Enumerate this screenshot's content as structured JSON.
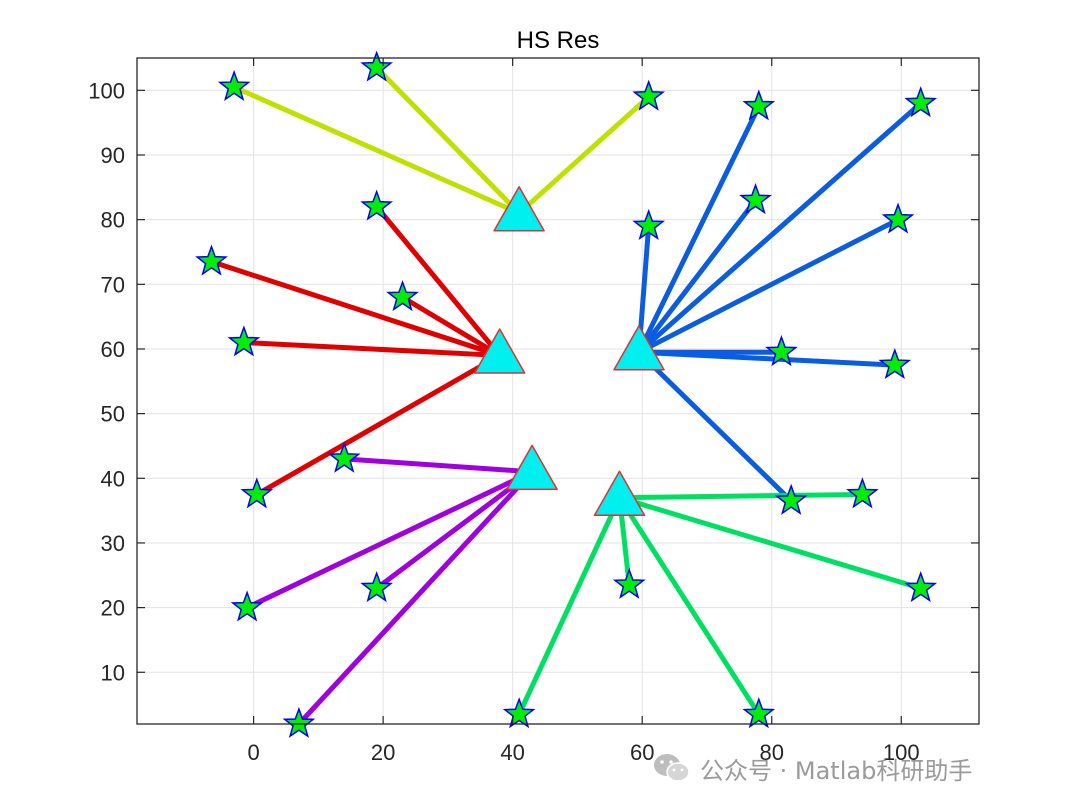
{
  "chart_data": {
    "type": "scatter",
    "title": "HS Res",
    "xlabel": "",
    "ylabel": "",
    "xlim": [
      -18,
      112
    ],
    "ylim": [
      2,
      105
    ],
    "xticks": [
      0,
      20,
      40,
      60,
      80,
      100
    ],
    "yticks": [
      10,
      20,
      30,
      40,
      50,
      60,
      70,
      80,
      90,
      100
    ],
    "xtick_labels": [
      "0",
      "20",
      "40",
      "60",
      "80",
      "100"
    ],
    "ytick_labels": [
      "10",
      "20",
      "30",
      "40",
      "50",
      "60",
      "70",
      "80",
      "90",
      "100"
    ],
    "grid": true,
    "centers_marker": "triangle",
    "centers_color": "#00f0f0",
    "centers_edge_color": "#e03030",
    "points_marker": "star",
    "points_color": "#00ee00",
    "points_edge_color": "#0000ff",
    "clusters": [
      {
        "color": "#c0e000",
        "center": [
          41,
          81
        ],
        "points": [
          [
            -3,
            100.5
          ],
          [
            19,
            103.5
          ],
          [
            61,
            99
          ]
        ]
      },
      {
        "color": "#e00000",
        "center": [
          38,
          59
        ],
        "points": [
          [
            19,
            82
          ],
          [
            -6.5,
            73.5
          ],
          [
            23,
            68
          ],
          [
            -1.5,
            61
          ],
          [
            0.5,
            37.5
          ]
        ]
      },
      {
        "color": "#0a5ce0",
        "center": [
          59.5,
          59.5
        ],
        "points": [
          [
            78,
            97.5
          ],
          [
            103,
            98
          ],
          [
            61,
            79
          ],
          [
            77.5,
            83
          ],
          [
            99.5,
            80
          ],
          [
            81.5,
            59.5
          ],
          [
            99,
            57.5
          ],
          [
            83,
            36.5
          ]
        ]
      },
      {
        "color": "#a000e0",
        "center": [
          43,
          41
        ],
        "points": [
          [
            14,
            43
          ],
          [
            -1,
            20
          ],
          [
            19,
            23
          ],
          [
            7,
            2
          ]
        ]
      },
      {
        "color": "#00e060",
        "center": [
          56.5,
          37
        ],
        "points": [
          [
            94,
            37.5
          ],
          [
            58,
            23.5
          ],
          [
            103,
            23
          ],
          [
            41,
            3.5
          ],
          [
            78,
            3.5
          ]
        ]
      }
    ]
  },
  "watermark": {
    "text": "公众号 · Matlab科研助手",
    "icon": "wechat-icon"
  }
}
